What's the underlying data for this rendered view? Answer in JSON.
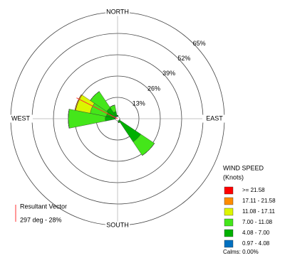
{
  "chart_data": {
    "type": "windrose",
    "categories": [
      "NORTH",
      null,
      null,
      null,
      "EAST",
      null,
      null,
      null,
      "SOUTH",
      null,
      null,
      null,
      "WEST",
      null,
      null,
      null
    ],
    "rlim": [
      0,
      65
    ],
    "rticks": [
      {
        "value": 13,
        "label": "13%"
      },
      {
        "value": 26,
        "label": "26%"
      },
      {
        "value": 39,
        "label": "39%"
      },
      {
        "value": 52,
        "label": "52%"
      },
      {
        "value": 65,
        "label": "65%"
      }
    ],
    "legend_title": [
      "WIND SPEED",
      "(Knots)"
    ],
    "series": [
      {
        "name": "0.97 - 4.08",
        "color": "#0070c0",
        "values": [
          1,
          0.5,
          0.5,
          1,
          1,
          0.5,
          1,
          0.5,
          1,
          0.5,
          0.5,
          0.5,
          1.5,
          2,
          2,
          1.5
        ]
      },
      {
        "name": "4.08 - 7.00",
        "color": "#00b000",
        "values": [
          1,
          0,
          0,
          0,
          0,
          1,
          16,
          2,
          0,
          0,
          0,
          0,
          6,
          5,
          6,
          3
        ]
      },
      {
        "name": "7.00 - 11.08",
        "color": "#44e61a",
        "values": [
          0,
          0,
          0,
          0,
          0,
          0,
          10,
          0,
          0,
          0,
          0,
          0,
          22.5,
          10,
          12,
          4
        ]
      },
      {
        "name": "11.08 - 17.11",
        "color": "#dcf500",
        "values": [
          0,
          0,
          0,
          0,
          0,
          0,
          0,
          0,
          0,
          0,
          0,
          0,
          0,
          9,
          0,
          0
        ]
      },
      {
        "name": "17.11 - 21.58",
        "color": "#ff8c00",
        "values": [
          0,
          0,
          0,
          0,
          0,
          0,
          0,
          0,
          0,
          0,
          0,
          0,
          0,
          0.5,
          0,
          0
        ]
      },
      {
        "name": ">= 21.58",
        "color": "#ff0000",
        "values": [
          0,
          0,
          0,
          0,
          0,
          0,
          0,
          0,
          0,
          0,
          0,
          0,
          0,
          0,
          0,
          0
        ]
      }
    ],
    "calms": "Calms: 0.00%",
    "resultant": {
      "label": "Resultant Vector",
      "text": "297 deg - 28%",
      "direction": 297,
      "magnitude": 28,
      "color": "#ff3030"
    }
  }
}
